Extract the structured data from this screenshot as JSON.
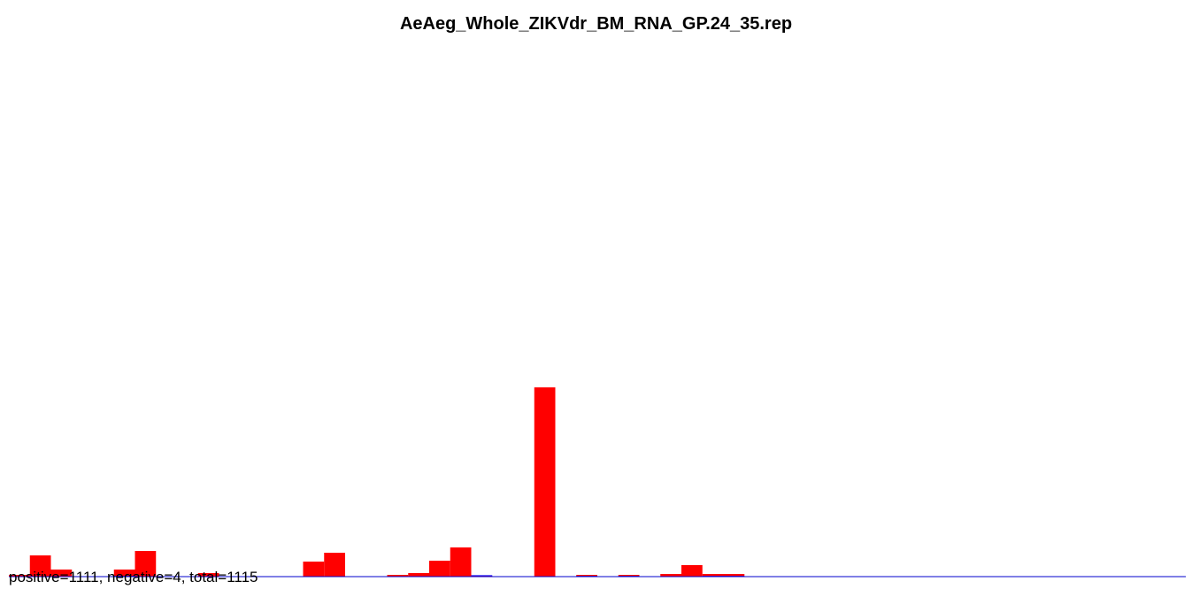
{
  "chart_data": {
    "type": "bar",
    "title": "AeAeg_Whole_ZIKVdr_BM_RNA_GP.24_35.rep",
    "xlabel": "",
    "ylabel": "",
    "grid": false,
    "colors": {
      "positive": "#ff0000",
      "negative": "#0000ff",
      "baseline": "#0000cc"
    },
    "series": [
      {
        "values": [
          2,
          24,
          8,
          0,
          0,
          8,
          29,
          0,
          0,
          4,
          0,
          0,
          0,
          0,
          17,
          27,
          0,
          0,
          2,
          4,
          18,
          33,
          1,
          0,
          0,
          214,
          0,
          2,
          0,
          2,
          0,
          3,
          13,
          3,
          3,
          0,
          0,
          0,
          0,
          0,
          0,
          0,
          0,
          0,
          0,
          0,
          0,
          0,
          0,
          0,
          0,
          0,
          0,
          0,
          0,
          0
        ]
      },
      {
        "values": [
          0,
          0,
          0,
          0,
          0,
          1,
          0,
          0,
          0,
          0,
          0,
          0,
          0,
          0,
          0,
          0,
          0,
          0,
          0,
          0,
          0,
          0,
          2,
          0,
          0,
          0,
          0,
          1,
          0,
          1,
          0,
          0,
          0,
          1,
          1,
          0,
          0,
          0,
          0,
          0,
          0,
          0,
          0,
          0,
          0,
          0,
          0,
          0,
          0,
          0,
          0,
          0,
          0,
          0,
          0,
          0
        ]
      }
    ]
  },
  "footer": {
    "text": "positive=1111, negative=4, total=1115"
  }
}
